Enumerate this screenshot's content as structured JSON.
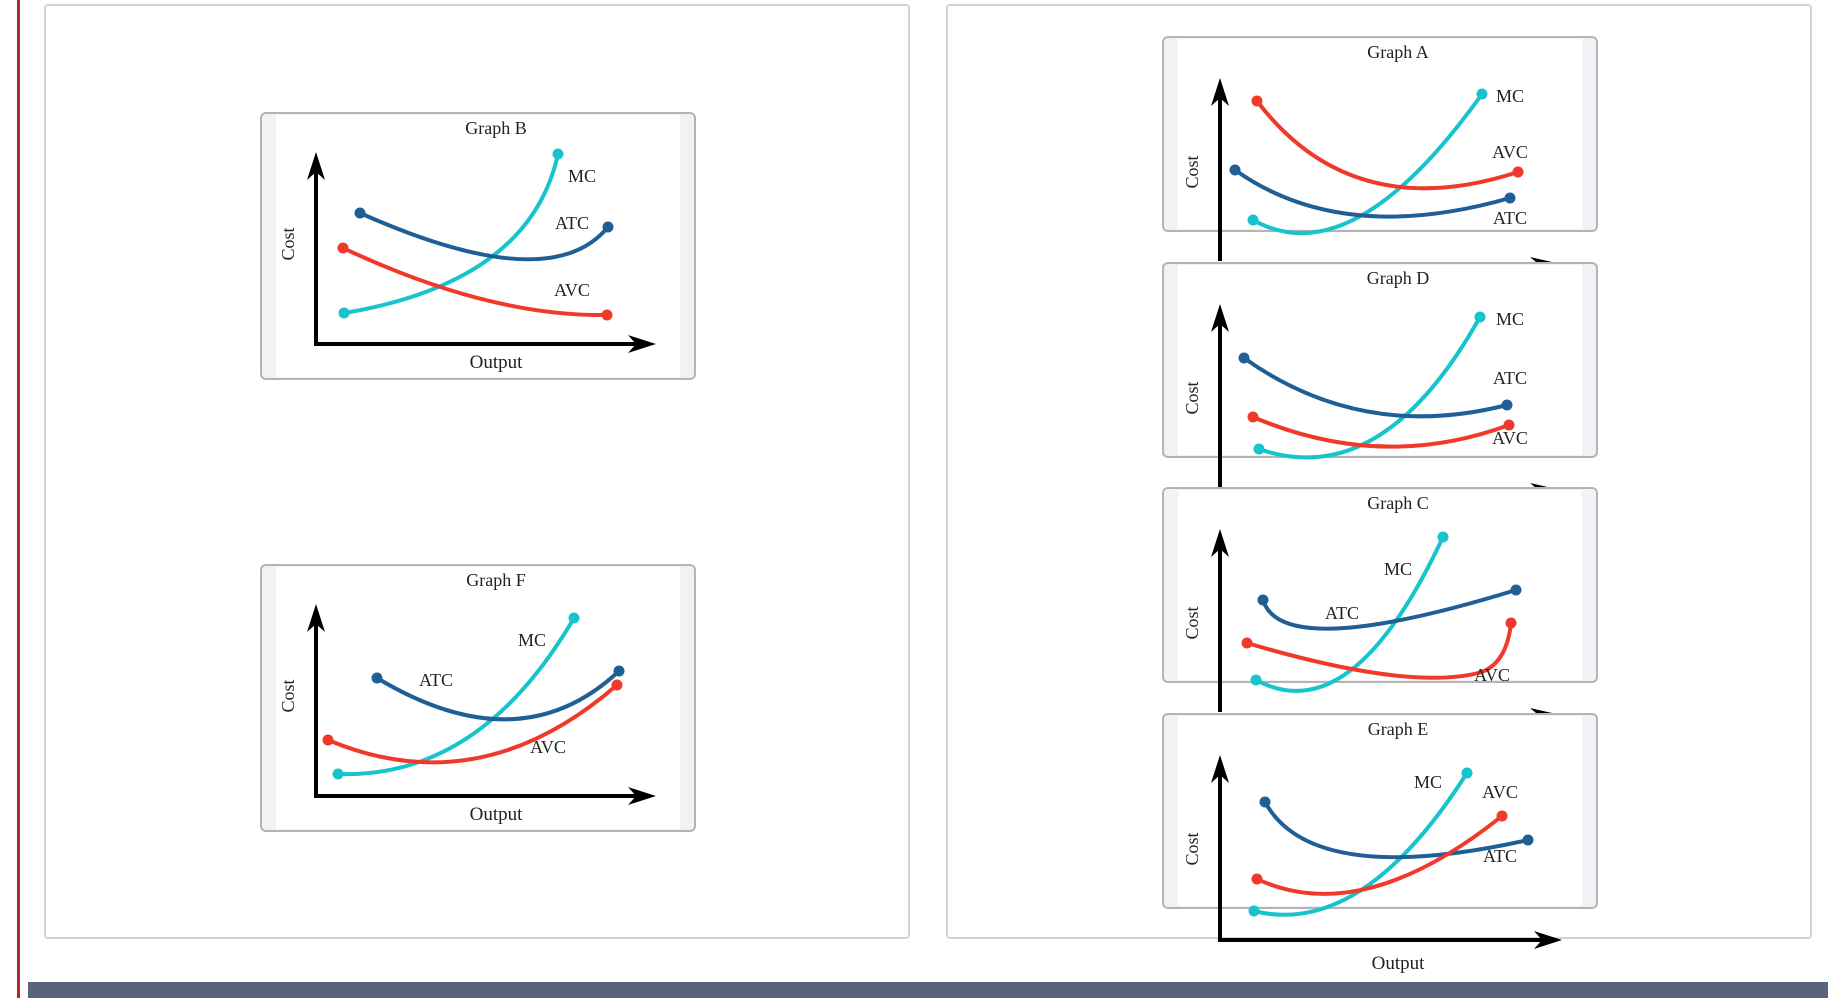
{
  "layout_note": "",
  "colors": {
    "mc": "#17c3cc",
    "atc": "#1f5f96",
    "avc": "#f0392b",
    "axis": "#000000",
    "frame": "#b4b4b4",
    "bottom_bar": "#56667a",
    "left_rule": "#b22a2a"
  },
  "axis_labels": {
    "x": "Output",
    "y": "Cost"
  },
  "left_panel": {
    "graph_b": {
      "title": "Graph B",
      "labels": {
        "mc": "MC",
        "atc": "ATC",
        "avc": "AVC"
      }
    },
    "graph_f": {
      "title": "Graph F",
      "labels": {
        "mc": "MC",
        "atc": "ATC",
        "avc": "AVC"
      }
    }
  },
  "right_panel": {
    "graph_a": {
      "title": "Graph A",
      "labels": {
        "mc": "MC",
        "atc": "ATC",
        "avc": "AVC"
      }
    },
    "graph_d": {
      "title": "Graph D",
      "labels": {
        "mc": "MC",
        "atc": "ATC",
        "avc": "AVC"
      }
    },
    "graph_c": {
      "title": "Graph C",
      "labels": {
        "mc": "MC",
        "atc": "ATC",
        "avc": "AVC"
      }
    },
    "graph_e": {
      "title": "Graph E",
      "labels": {
        "mc": "MC",
        "atc": "ATC",
        "avc": "AVC"
      }
    }
  }
}
